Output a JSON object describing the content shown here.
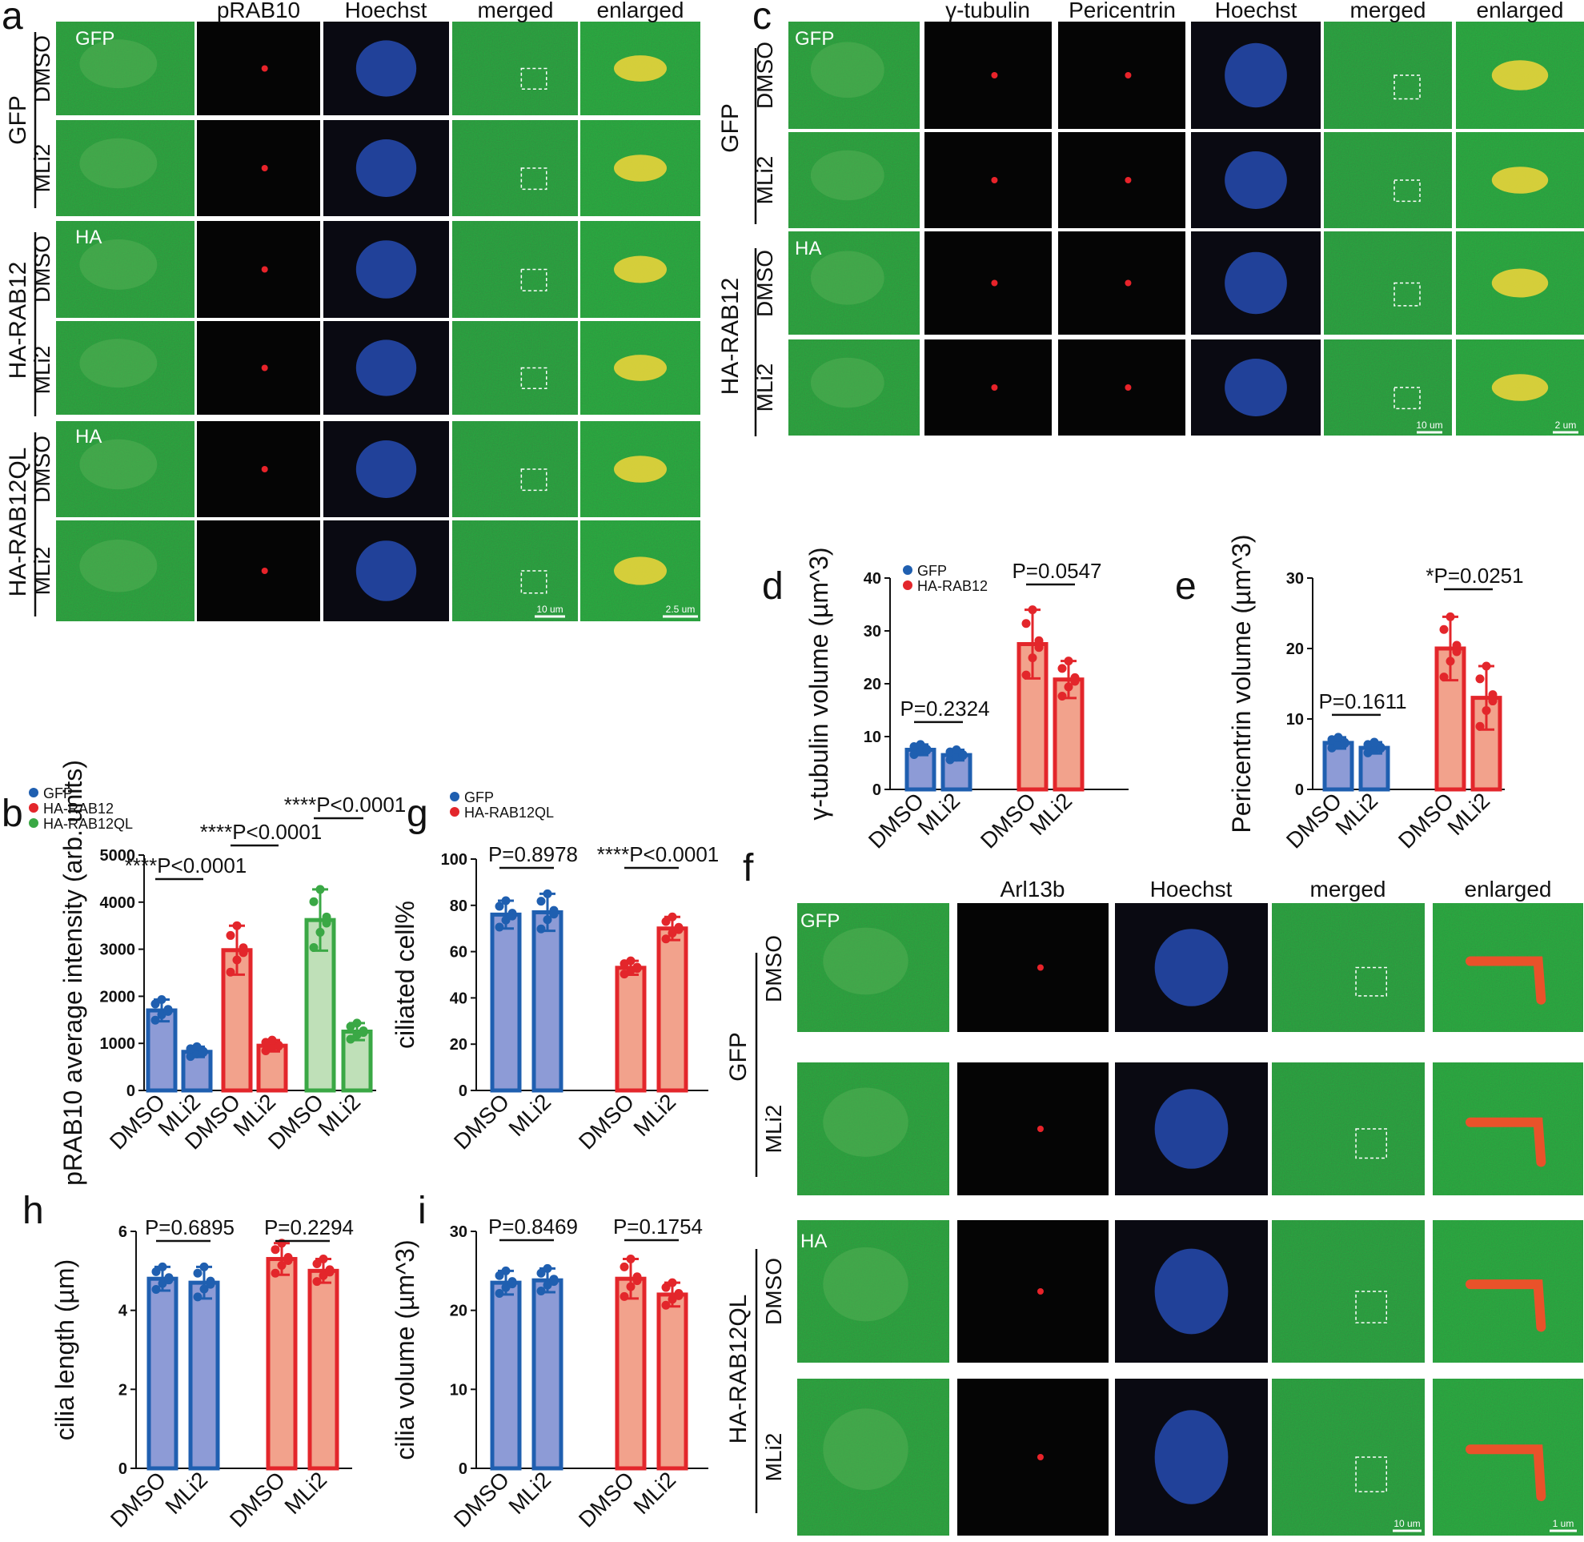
{
  "panel_letters": [
    "a",
    "b",
    "c",
    "d",
    "e",
    "f",
    "g",
    "h",
    "i"
  ],
  "a": {
    "columns": [
      "pRAB10",
      "Hoechst",
      "merged",
      "enlarged"
    ],
    "stain_labels": [
      "GFP",
      "HA",
      "HA"
    ],
    "groups": [
      "GFP",
      "HA-RAB12",
      "HA-RAB12QL"
    ],
    "treatments": [
      "DMSO",
      "MLi2"
    ],
    "scale_bars": [
      "10 um",
      "2.5 um"
    ]
  },
  "c": {
    "columns": [
      "γ-tubulin",
      "Pericentrin",
      "Hoechst",
      "merged",
      "enlarged"
    ],
    "stain_labels": [
      "GFP",
      "HA"
    ],
    "groups": [
      "GFP",
      "HA-RAB12"
    ],
    "treatments": [
      "DMSO",
      "MLi2"
    ],
    "scale_bars": [
      "10 um",
      "2 um"
    ]
  },
  "f": {
    "columns": [
      "Arl13b",
      "Hoechst",
      "merged",
      "enlarged"
    ],
    "stain_labels": [
      "GFP",
      "HA"
    ],
    "groups": [
      "GFP",
      "HA-RAB12QL"
    ],
    "treatments": [
      "DMSO",
      "MLi2"
    ],
    "scale_bars": [
      "10 um",
      "1 um"
    ]
  },
  "colors": {
    "gfp_blue": "#1f5fb0",
    "gfp_fill": "#8d9bd6",
    "rab12_red": "#e3262b",
    "rab12_fill": "#f2a28c",
    "ql_green": "#3aa845",
    "ql_fill": "#bfe0b8"
  },
  "chart_data": [
    {
      "id": "b",
      "type": "bar",
      "ylabel": "pRAB10 average intensity (arb. units)",
      "ylim": [
        0,
        5000
      ],
      "yticks": [
        0,
        1000,
        2000,
        3000,
        4000,
        5000
      ],
      "categories": [
        "DMSO",
        "MLi2",
        "DMSO",
        "MLi2",
        "DMSO",
        "MLi2"
      ],
      "legend": [
        "GFP",
        "HA-RAB12",
        "HA-RAB12QL"
      ],
      "values": [
        1700,
        820,
        2980,
        950,
        3620,
        1250
      ],
      "errors": [
        230,
        110,
        520,
        120,
        650,
        180
      ],
      "groups": [
        0,
        0,
        1,
        1,
        2,
        2
      ],
      "annotations": [
        "****P<0.0001",
        "****P<0.0001",
        "****P<0.0001"
      ]
    },
    {
      "id": "g",
      "type": "bar",
      "ylabel": "ciliated cell%",
      "ylim": [
        0,
        100
      ],
      "yticks": [
        0,
        20,
        40,
        60,
        80,
        100
      ],
      "categories": [
        "DMSO",
        "MLi2",
        "DMSO",
        "MLi2"
      ],
      "legend": [
        "GFP",
        "HA-RAB12QL"
      ],
      "values": [
        76,
        77,
        53,
        70
      ],
      "errors": [
        6,
        8,
        3,
        5
      ],
      "groups": [
        0,
        0,
        1,
        1
      ],
      "annotations": [
        "P=0.8978",
        "****P<0.0001"
      ]
    },
    {
      "id": "d",
      "type": "bar",
      "ylabel": "γ-tubulin volume (µm^3)",
      "ylim": [
        0,
        40
      ],
      "yticks": [
        0,
        10,
        20,
        30,
        40
      ],
      "categories": [
        "DMSO",
        "MLi2",
        "DMSO",
        "MLi2"
      ],
      "legend": [
        "GFP",
        "HA-RAB12"
      ],
      "values": [
        7.5,
        6.5,
        27.5,
        20.8
      ],
      "errors": [
        1,
        1,
        6.5,
        3.5
      ],
      "groups": [
        0,
        0,
        1,
        1
      ],
      "annotations": [
        "P=0.2324",
        "P=0.0547"
      ]
    },
    {
      "id": "e",
      "type": "bar",
      "ylabel": "Pericentrin volume (µm^3)",
      "ylim": [
        0,
        30
      ],
      "yticks": [
        0,
        10,
        20,
        30
      ],
      "categories": [
        "DMSO",
        "MLi2",
        "DMSO",
        "MLi2"
      ],
      "legend": [],
      "values": [
        6.6,
        5.9,
        20,
        13
      ],
      "errors": [
        0.8,
        0.8,
        4.5,
        4.5
      ],
      "groups": [
        0,
        0,
        1,
        1
      ],
      "annotations": [
        "P=0.1611",
        "*P=0.0251"
      ]
    },
    {
      "id": "h",
      "type": "bar",
      "ylabel": "cilia length (µm)",
      "ylim": [
        0,
        6
      ],
      "yticks": [
        0,
        2,
        4,
        6
      ],
      "categories": [
        "DMSO",
        "MLi2",
        "DMSO",
        "MLi2"
      ],
      "legend": [],
      "values": [
        4.8,
        4.7,
        5.3,
        5.0
      ],
      "errors": [
        0.3,
        0.4,
        0.4,
        0.3
      ],
      "groups": [
        0,
        0,
        1,
        1
      ],
      "annotations": [
        "P=0.6895",
        "P=0.2294"
      ]
    },
    {
      "id": "i",
      "type": "bar",
      "ylabel": "cilia volume (µm^3)",
      "ylim": [
        0,
        30
      ],
      "yticks": [
        0,
        10,
        20,
        30
      ],
      "categories": [
        "DMSO",
        "MLi2",
        "DMSO",
        "MLi2"
      ],
      "legend": [],
      "values": [
        23.5,
        23.8,
        24,
        22
      ],
      "errors": [
        1.5,
        1.5,
        2.5,
        1.5
      ],
      "groups": [
        0,
        0,
        1,
        1
      ],
      "annotations": [
        "P=0.8469",
        "P=0.1754"
      ]
    }
  ]
}
